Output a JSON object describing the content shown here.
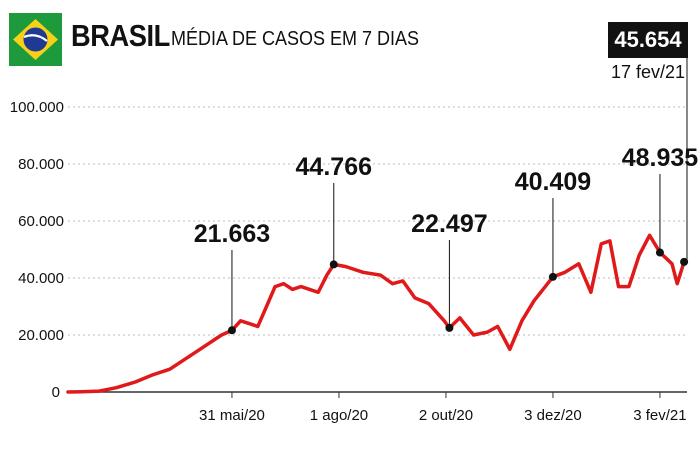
{
  "header": {
    "country": "BRASIL",
    "subtitle": "MÉDIA DE CASOS EM 7 DIAS",
    "flag": "brazil-flag"
  },
  "latest": {
    "value": "45.654",
    "date": "17 fev/21"
  },
  "colors": {
    "line": "#e0191a",
    "grid": "#bbbbbb",
    "text": "#111111"
  },
  "chart_data": {
    "type": "line",
    "title": "MÉDIA DE CASOS EM 7 DIAS",
    "xlabel": "",
    "ylabel": "",
    "ylim": [
      0,
      100000
    ],
    "yticks": [
      0,
      20000,
      40000,
      60000,
      80000,
      100000
    ],
    "ytick_labels": [
      "0",
      "20.000",
      "40.000",
      "60.000",
      "80.000",
      "100.000"
    ],
    "xticks": [
      "2020-05-31",
      "2020-08-01",
      "2020-10-02",
      "2020-12-03",
      "2021-02-03"
    ],
    "xtick_labels": [
      "31 mai/20",
      "1 ago/20",
      "2 out/20",
      "3 dez/20",
      "3 fev/21"
    ],
    "grid": true,
    "x": [
      "2020-02-26",
      "2020-03-05",
      "2020-03-15",
      "2020-03-25",
      "2020-04-05",
      "2020-04-15",
      "2020-04-25",
      "2020-05-05",
      "2020-05-15",
      "2020-05-25",
      "2020-05-31",
      "2020-06-05",
      "2020-06-10",
      "2020-06-15",
      "2020-06-20",
      "2020-06-25",
      "2020-06-30",
      "2020-07-05",
      "2020-07-10",
      "2020-07-15",
      "2020-07-20",
      "2020-07-25",
      "2020-07-29",
      "2020-08-05",
      "2020-08-15",
      "2020-08-25",
      "2020-09-01",
      "2020-09-07",
      "2020-09-14",
      "2020-09-22",
      "2020-10-01",
      "2020-10-04",
      "2020-10-10",
      "2020-10-18",
      "2020-10-26",
      "2020-11-01",
      "2020-11-08",
      "2020-11-15",
      "2020-11-22",
      "2020-12-03",
      "2020-12-10",
      "2020-12-18",
      "2020-12-25",
      "2020-12-31",
      "2021-01-05",
      "2021-01-10",
      "2021-01-16",
      "2021-01-22",
      "2021-01-28",
      "2021-02-03",
      "2021-02-10",
      "2021-02-13",
      "2021-02-17"
    ],
    "series": [
      {
        "values": [
          0,
          100,
          300,
          1500,
          3500,
          6000,
          8000,
          12000,
          16000,
          20000,
          21663,
          25000,
          24000,
          23000,
          30000,
          37000,
          38000,
          36000,
          37000,
          36000,
          35000,
          41000,
          44766,
          44000,
          42000,
          41000,
          38000,
          39000,
          33000,
          31000,
          25000,
          22497,
          26000,
          20000,
          21000,
          23000,
          15000,
          25000,
          32000,
          40409,
          42000,
          45000,
          35000,
          52000,
          53000,
          37000,
          37000,
          48000,
          55000,
          48935,
          45000,
          38000,
          45654
        ]
      }
    ],
    "annotations": [
      {
        "x": "2020-05-31",
        "y": 21663,
        "label": "21.663"
      },
      {
        "x": "2020-07-29",
        "y": 44766,
        "label": "44.766"
      },
      {
        "x": "2020-10-04",
        "y": 22497,
        "label": "22.497"
      },
      {
        "x": "2020-12-03",
        "y": 40409,
        "label": "40.409"
      },
      {
        "x": "2021-02-03",
        "y": 48935,
        "label": "48.935"
      }
    ]
  }
}
